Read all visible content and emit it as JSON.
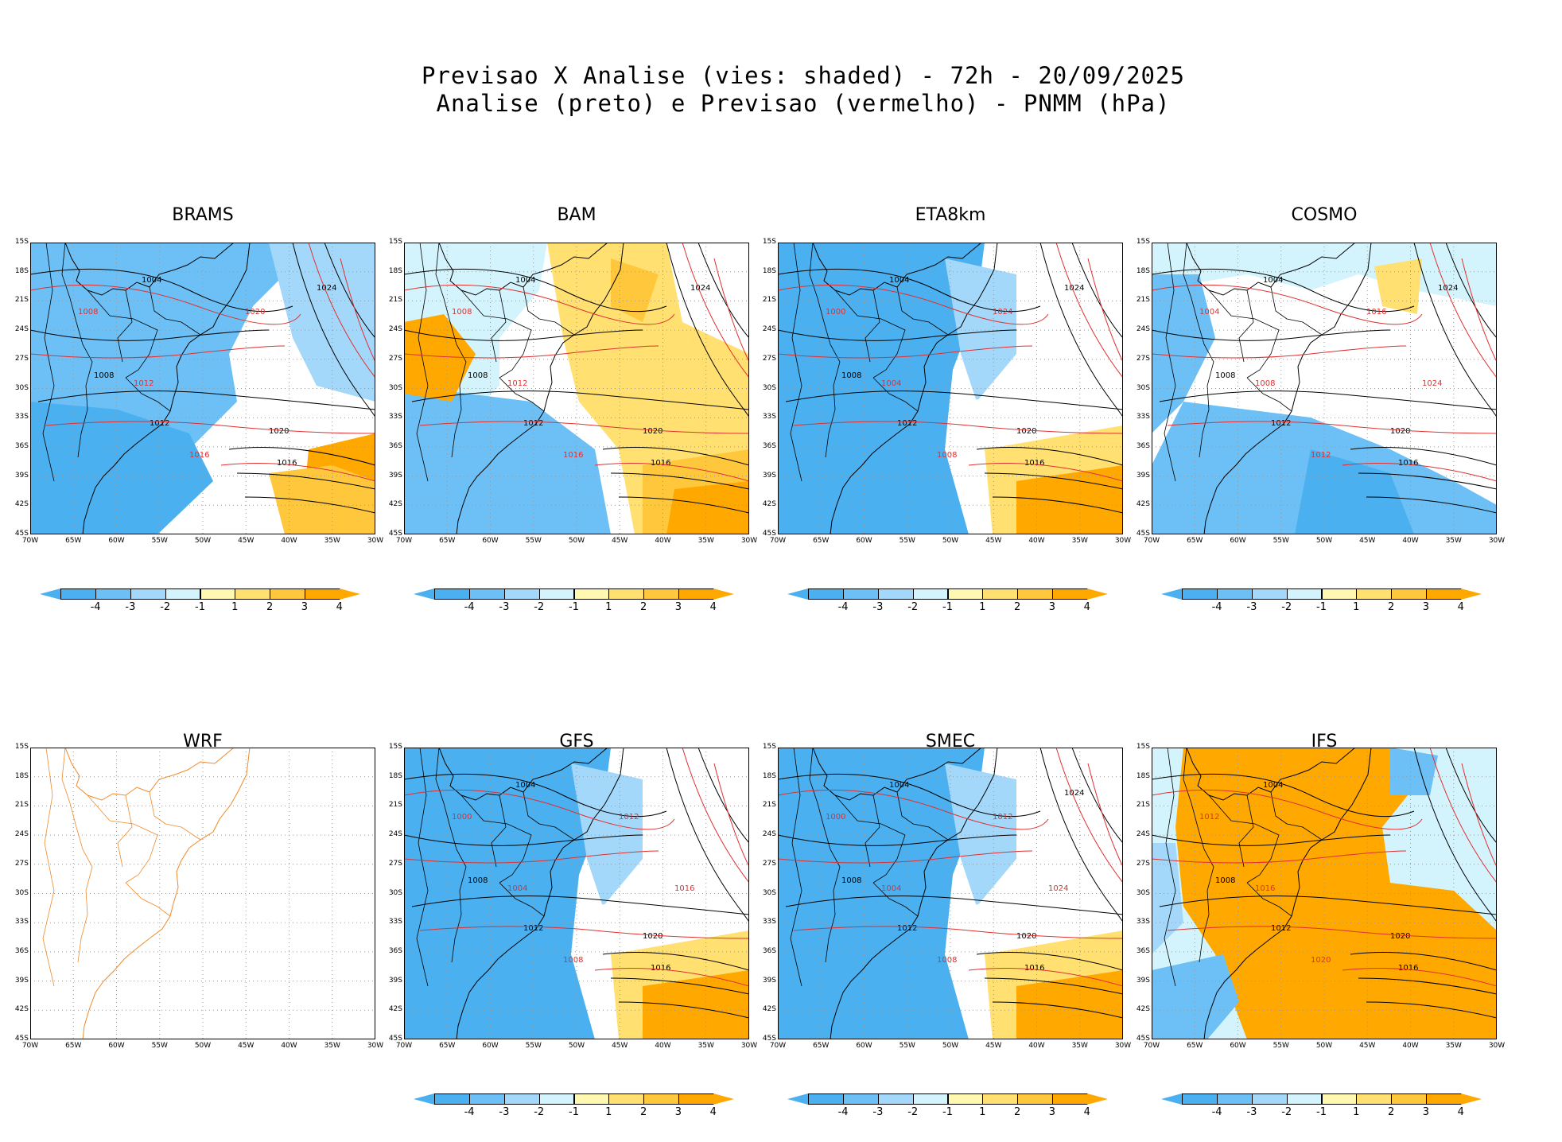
{
  "title": {
    "line1": "Previsao X Analise (vies: shaded) - 72h - 20/09/2025",
    "line2": "Analise (preto) e Previsao (vermelho) - PNMM (hPa)"
  },
  "map_axes": {
    "lat_labels": [
      "15S",
      "18S",
      "21S",
      "24S",
      "27S",
      "30S",
      "33S",
      "36S",
      "39S",
      "42S",
      "45S"
    ],
    "lon_labels": [
      "70W",
      "65W",
      "60W",
      "55W",
      "50W",
      "45W",
      "40W",
      "35W",
      "30W"
    ],
    "lon_range": [
      -70,
      -30
    ],
    "lat_range": [
      -45,
      -15
    ]
  },
  "colorbar": {
    "labels": [
      "-4",
      "-3",
      "-2",
      "-1",
      "1",
      "2",
      "3",
      "4"
    ],
    "colors": [
      "#4ab0f0",
      "#6cc0f5",
      "#a4d8fa",
      "#d4f4fd",
      "#ffffff",
      "#fff8b0",
      "#ffe070",
      "#ffc83c",
      "#ffa800"
    ]
  },
  "colors": {
    "analysis_contour": "#000000",
    "forecast_contour": "#e03030",
    "coastline": "#f08a2a",
    "grid": "#999999"
  },
  "panels": [
    {
      "name": "BRAMS",
      "bias": "neg-mixed",
      "contours": [
        "1004",
        "1008",
        "1012",
        "1016",
        "1020",
        "1024"
      ],
      "fc_labels": [
        "1008",
        "1012",
        "1016",
        "1020"
      ]
    },
    {
      "name": "BAM",
      "bias": "pos-east",
      "contours": [
        "1004",
        "1008",
        "1012",
        "1016",
        "1020",
        "1024"
      ],
      "fc_labels": [
        "1008",
        "1012",
        "1016"
      ]
    },
    {
      "name": "ETA8km",
      "bias": "neg-strong",
      "contours": [
        "1004",
        "1008",
        "1012",
        "1016",
        "1020",
        "1024"
      ],
      "fc_labels": [
        "1000",
        "1004",
        "1008",
        "1024"
      ]
    },
    {
      "name": "COSMO",
      "bias": "neg-light",
      "contours": [
        "1004",
        "1008",
        "1012",
        "1016",
        "1020",
        "1024"
      ],
      "fc_labels": [
        "1004",
        "1008",
        "1012",
        "1016",
        "1024"
      ]
    },
    {
      "name": "WRF",
      "bias": "none",
      "contours": [],
      "fc_labels": []
    },
    {
      "name": "GFS",
      "bias": "neg-strong",
      "contours": [
        "1004",
        "1008",
        "1012",
        "1016",
        "1020"
      ],
      "fc_labels": [
        "1000",
        "1004",
        "1008",
        "1012",
        "1016"
      ]
    },
    {
      "name": "SMEC",
      "bias": "neg-strong",
      "contours": [
        "1004",
        "1008",
        "1012",
        "1016",
        "1020",
        "1024"
      ],
      "fc_labels": [
        "1000",
        "1004",
        "1008",
        "1012",
        "1024"
      ]
    },
    {
      "name": "IFS",
      "bias": "pos-strong",
      "contours": [
        "1004",
        "1008",
        "1012",
        "1016",
        "1020"
      ],
      "fc_labels": [
        "1012",
        "1016",
        "1020"
      ]
    }
  ]
}
